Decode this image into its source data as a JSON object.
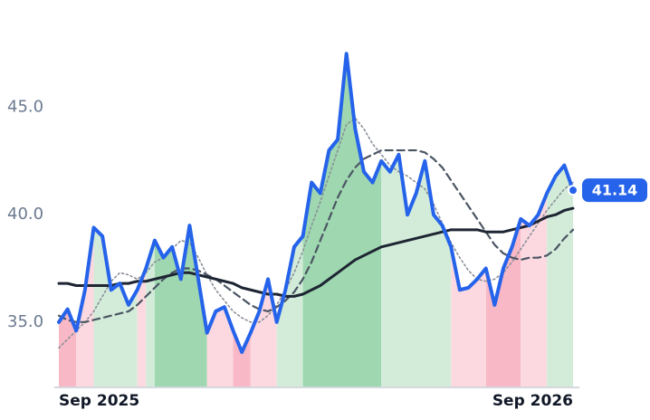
{
  "chart_data": {
    "type": "line",
    "categories": [
      "Sep 2025",
      null,
      null,
      null,
      null,
      null,
      null,
      null,
      null,
      null,
      null,
      null,
      null,
      null,
      null,
      null,
      null,
      null,
      null,
      null,
      null,
      null,
      null,
      null,
      null,
      null,
      null,
      null,
      null,
      null,
      null,
      null,
      null,
      null,
      null,
      null,
      null,
      null,
      null,
      null,
      null,
      null,
      null,
      null,
      null,
      null,
      null,
      null,
      null,
      null,
      null,
      null,
      null,
      null,
      null,
      null,
      null,
      null,
      null,
      "Sep 2026"
    ],
    "series": [
      {
        "color": "#2563eb",
        "values": [
          35.0,
          35.6,
          34.6,
          36.5,
          39.4,
          39.0,
          36.5,
          36.8,
          35.8,
          36.5,
          37.5,
          38.8,
          38.0,
          38.5,
          37.0,
          39.5,
          37.0,
          34.5,
          35.5,
          35.7,
          34.6,
          33.6,
          34.5,
          35.5,
          37.0,
          35.0,
          36.5,
          38.5,
          39.0,
          41.5,
          41.0,
          43.0,
          43.5,
          47.5,
          44.0,
          42.0,
          41.5,
          42.5,
          42.0,
          42.8,
          40.0,
          41.0,
          42.5,
          40.0,
          39.5,
          38.5,
          36.5,
          36.6,
          37.0,
          37.5,
          35.8,
          37.5,
          38.5,
          39.8,
          39.5,
          40.0,
          41.0,
          41.8,
          42.3,
          41.14
        ]
      },
      {
        "color": "#1e2533",
        "values": [
          36.8,
          36.8,
          36.7,
          36.7,
          36.7,
          36.7,
          36.7,
          36.8,
          36.8,
          36.9,
          36.9,
          37.0,
          37.1,
          37.2,
          37.3,
          37.3,
          37.2,
          37.1,
          37.0,
          36.9,
          36.8,
          36.6,
          36.5,
          36.4,
          36.3,
          36.3,
          36.2,
          36.2,
          36.3,
          36.5,
          36.7,
          37.0,
          37.3,
          37.6,
          37.9,
          38.1,
          38.3,
          38.5,
          38.6,
          38.7,
          38.8,
          38.9,
          39.0,
          39.1,
          39.2,
          39.3,
          39.3,
          39.3,
          39.3,
          39.2,
          39.2,
          39.2,
          39.3,
          39.4,
          39.5,
          39.7,
          39.9,
          40.0,
          40.2,
          40.3
        ]
      },
      {
        "color": "#4b5563",
        "dash": "8 5",
        "values": [
          35.3,
          35.1,
          35.0,
          35.0,
          35.1,
          35.2,
          35.3,
          35.4,
          35.5,
          35.8,
          36.2,
          36.6,
          37.0,
          37.3,
          37.5,
          37.5,
          37.4,
          37.2,
          37.0,
          36.7,
          36.4,
          36.1,
          35.8,
          35.6,
          35.5,
          35.7,
          36.0,
          36.4,
          37.0,
          37.8,
          38.8,
          39.8,
          40.8,
          41.6,
          42.2,
          42.6,
          42.8,
          43.0,
          43.0,
          43.0,
          43.0,
          43.0,
          42.9,
          42.6,
          42.2,
          41.6,
          41.0,
          40.4,
          39.8,
          39.2,
          38.6,
          38.2,
          38.0,
          37.9,
          38.0,
          38.0,
          38.1,
          38.4,
          38.9,
          39.3
        ]
      },
      {
        "color": "#8a8f98",
        "dash": "2 3",
        "values": [
          33.8,
          34.2,
          34.6,
          35.0,
          35.5,
          36.2,
          36.9,
          37.3,
          37.2,
          37.0,
          37.3,
          37.8,
          38.0,
          38.4,
          38.8,
          38.7,
          38.0,
          37.2,
          36.5,
          36.0,
          35.5,
          35.2,
          35.0,
          35.0,
          35.3,
          35.8,
          36.5,
          37.3,
          38.3,
          39.5,
          40.6,
          41.8,
          43.0,
          44.2,
          44.5,
          44.0,
          43.3,
          42.8,
          42.3,
          42.0,
          41.8,
          41.5,
          41.2,
          40.5,
          39.6,
          38.7,
          38.0,
          37.4,
          37.0,
          36.9,
          37.0,
          37.3,
          37.8,
          38.4,
          39.0,
          39.6,
          40.2,
          40.7,
          41.2,
          41.5
        ]
      }
    ],
    "bands": [
      {
        "from": 0,
        "to": 2,
        "color": "#f8b8c6"
      },
      {
        "from": 2,
        "to": 4,
        "color": "#fcd9e0"
      },
      {
        "from": 4,
        "to": 9,
        "color": "#d3ecd9"
      },
      {
        "from": 9,
        "to": 10,
        "color": "#fcd9e0"
      },
      {
        "from": 10,
        "to": 11,
        "color": "#d3ecd9"
      },
      {
        "from": 11,
        "to": 17,
        "color": "#9fd8b0"
      },
      {
        "from": 17,
        "to": 20,
        "color": "#fcd9e0"
      },
      {
        "from": 20,
        "to": 22,
        "color": "#f8b8c6"
      },
      {
        "from": 22,
        "to": 25,
        "color": "#fcd9e0"
      },
      {
        "from": 25,
        "to": 28,
        "color": "#d3ecd9"
      },
      {
        "from": 28,
        "to": 37,
        "color": "#9fd8b0"
      },
      {
        "from": 37,
        "to": 45,
        "color": "#d3ecd9"
      },
      {
        "from": 45,
        "to": 49,
        "color": "#fcd9e0"
      },
      {
        "from": 49,
        "to": 53,
        "color": "#f8b8c6"
      },
      {
        "from": 53,
        "to": 56,
        "color": "#fcd9e0"
      },
      {
        "from": 56,
        "to": 59,
        "color": "#d3ecd9"
      }
    ],
    "ylim": [
      32,
      50
    ],
    "yticks": [
      {
        "value": 35,
        "label": "35.0"
      },
      {
        "value": 40,
        "label": "40.0"
      },
      {
        "value": 45,
        "label": "45.0"
      }
    ]
  }
}
